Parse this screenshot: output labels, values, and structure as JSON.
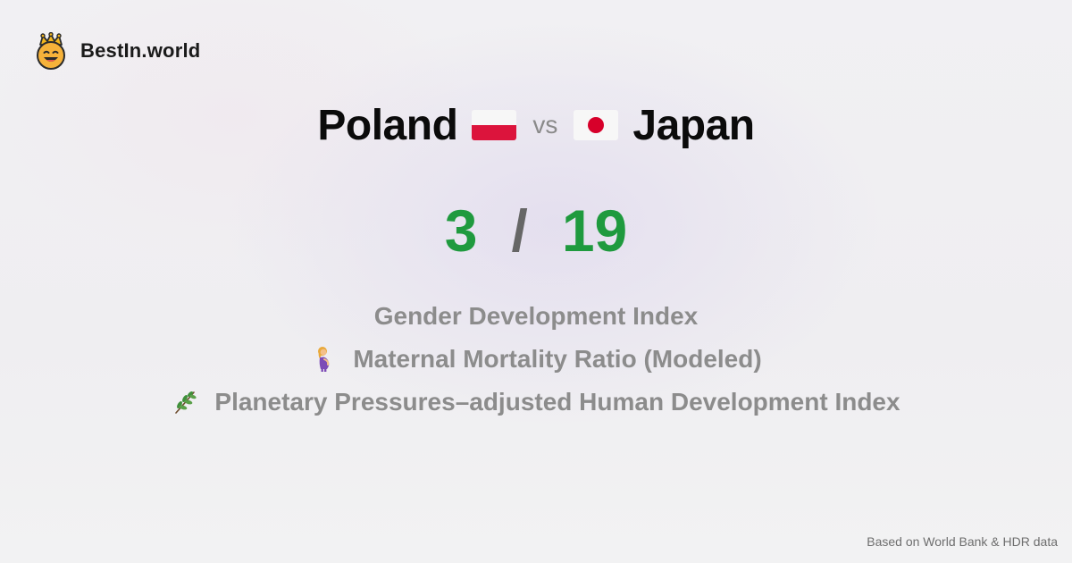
{
  "brand": {
    "name": "BestIn.world",
    "logo_icon": "crown-smiley-icon"
  },
  "comparison": {
    "left": {
      "name": "Poland",
      "flag_icon": "poland-flag-icon"
    },
    "vs": "vs",
    "right": {
      "name": "Japan",
      "flag_icon": "japan-flag-icon"
    }
  },
  "score": {
    "left": "3",
    "separator": "/",
    "right": "19",
    "color": "#1f9a3e"
  },
  "metrics": [
    {
      "label": "Gender Development Index",
      "icon": ""
    },
    {
      "label": "Maternal Mortality Ratio (Modeled)",
      "icon": "pregnant-woman-icon"
    },
    {
      "label": "Planetary Pressures–adjusted Human Development Index",
      "icon": "herb-icon"
    }
  ],
  "footer": {
    "note": "Based on World Bank & HDR data"
  }
}
